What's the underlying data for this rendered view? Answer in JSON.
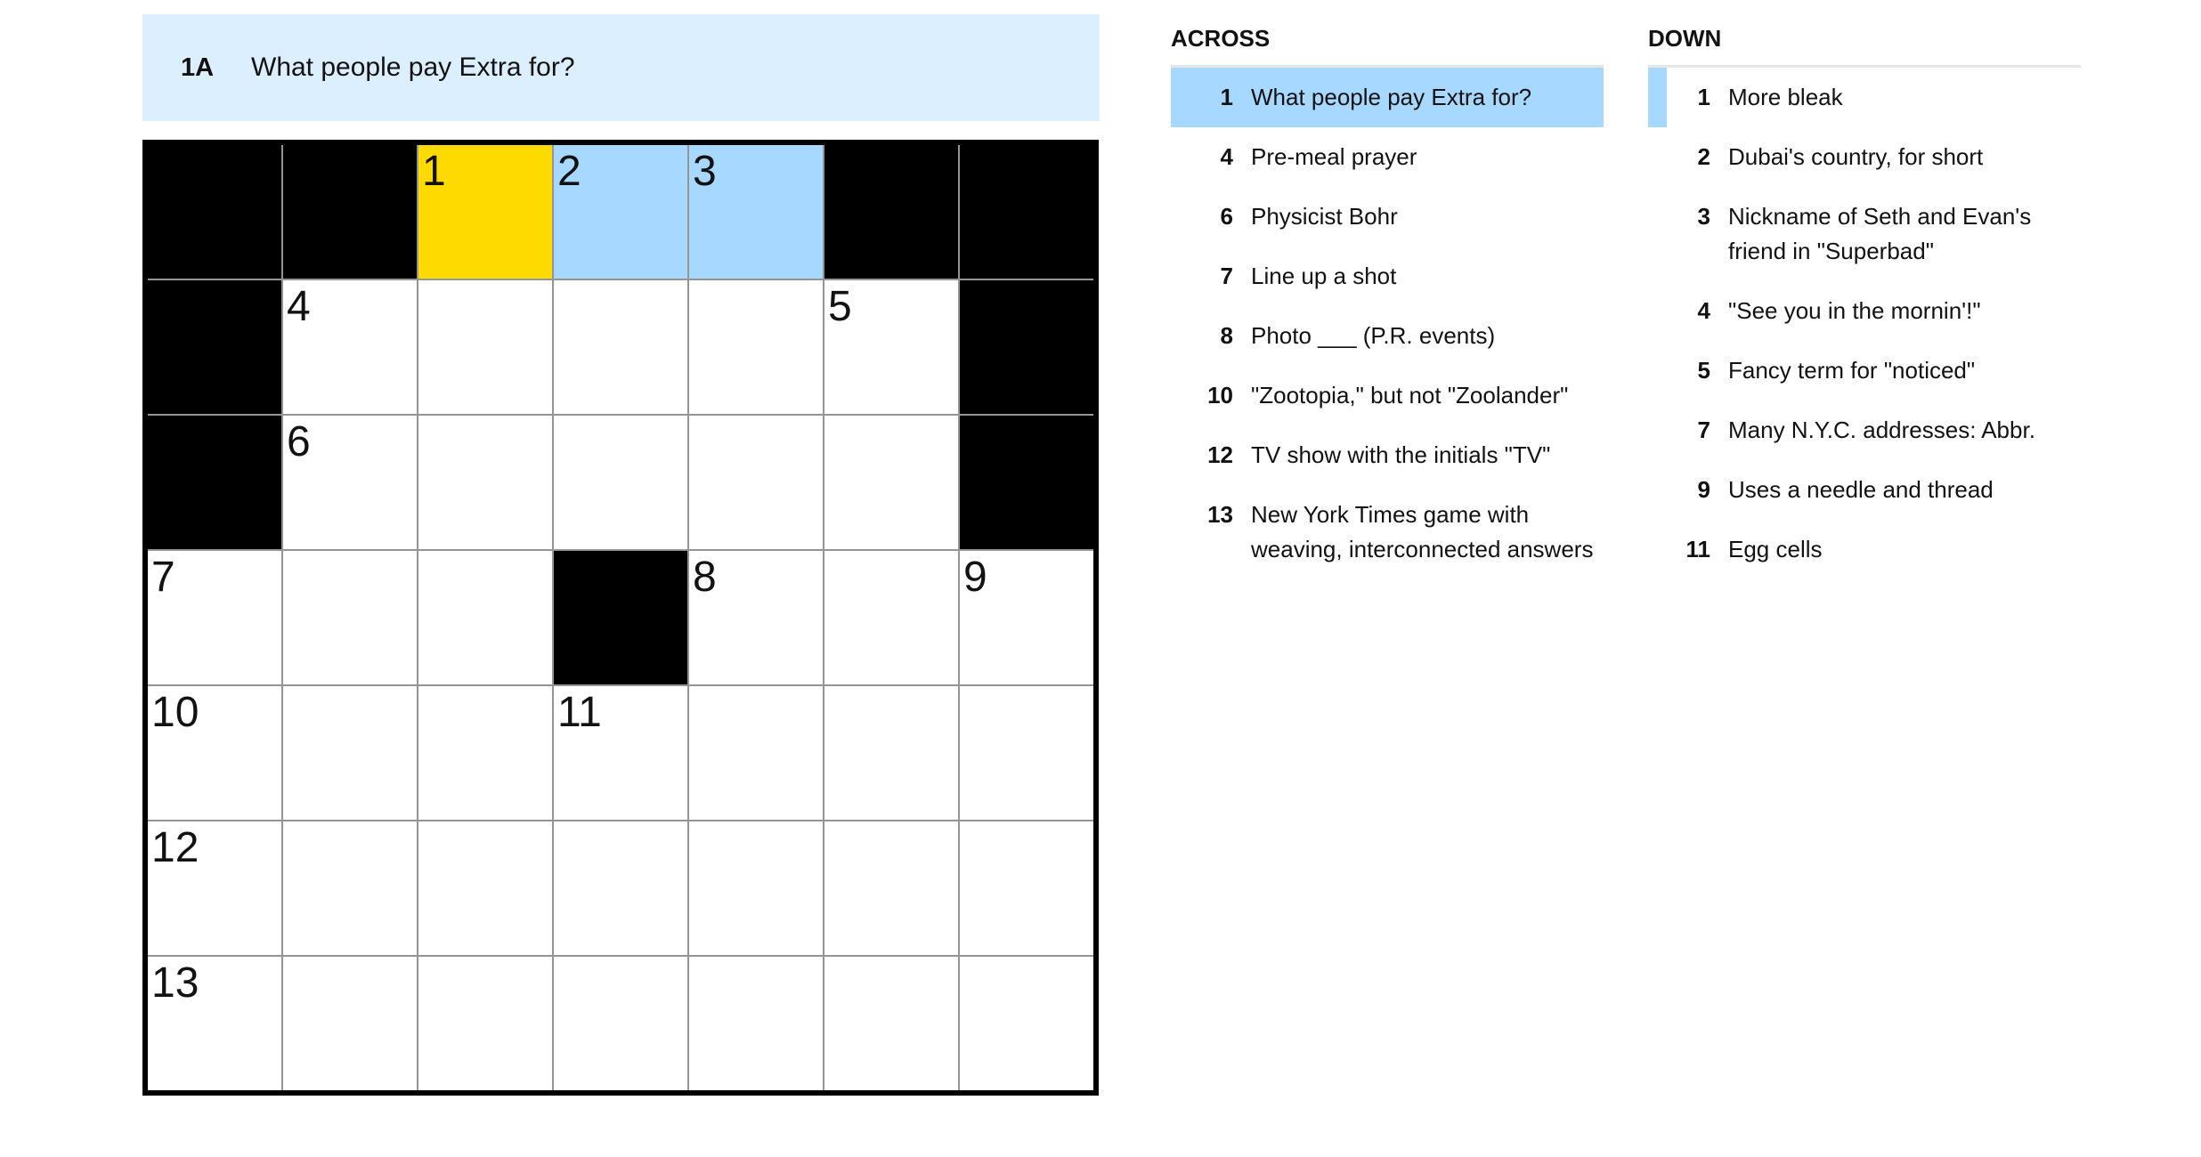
{
  "clue_bar": {
    "number": "1A",
    "text": "What people pay Extra for?"
  },
  "colors": {
    "selected_cell": "#ffda00",
    "highlight": "#a7d8ff",
    "clue_bar_bg": "#dcefff"
  },
  "grid": {
    "rows": [
      [
        "#",
        "#",
        "1",
        "2",
        "3",
        "#",
        "#"
      ],
      [
        "#",
        "4",
        "",
        "",
        "",
        "5",
        "#"
      ],
      [
        "#",
        "6",
        "",
        "",
        "",
        "",
        "#"
      ],
      [
        "7",
        "",
        "",
        "#",
        "8",
        "",
        "9"
      ],
      [
        "10",
        "",
        "",
        "11",
        "",
        "",
        ""
      ],
      [
        "12",
        "",
        "",
        "",
        "",
        "",
        ""
      ],
      [
        "13",
        "",
        "",
        "",
        "",
        "",
        ""
      ]
    ],
    "selected": [
      0,
      2
    ],
    "highlighted": [
      [
        0,
        3
      ],
      [
        0,
        4
      ]
    ]
  },
  "across": {
    "title": "ACROSS",
    "clues": [
      {
        "num": "1",
        "text": "What people pay Extra for?",
        "state": "active"
      },
      {
        "num": "4",
        "text": "Pre-meal prayer"
      },
      {
        "num": "6",
        "text": "Physicist Bohr"
      },
      {
        "num": "7",
        "text": "Line up a shot"
      },
      {
        "num": "8",
        "text": "Photo ___ (P.R. events)"
      },
      {
        "num": "10",
        "text": "\"Zootopia,\" but not \"Zoolander\""
      },
      {
        "num": "12",
        "text": "TV show with the initials \"TV\""
      },
      {
        "num": "13",
        "text": "New York Times game with weaving, interconnected answers"
      }
    ]
  },
  "down": {
    "title": "DOWN",
    "clues": [
      {
        "num": "1",
        "text": "More bleak",
        "state": "cross"
      },
      {
        "num": "2",
        "text": "Dubai's country, for short"
      },
      {
        "num": "3",
        "text": "Nickname of Seth and Evan's friend in \"Superbad\""
      },
      {
        "num": "4",
        "text": "\"See you in the mornin'!\""
      },
      {
        "num": "5",
        "text": "Fancy term for \"noticed\""
      },
      {
        "num": "7",
        "text": "Many N.Y.C. addresses: Abbr."
      },
      {
        "num": "9",
        "text": "Uses a needle and thread"
      },
      {
        "num": "11",
        "text": "Egg cells"
      }
    ]
  }
}
